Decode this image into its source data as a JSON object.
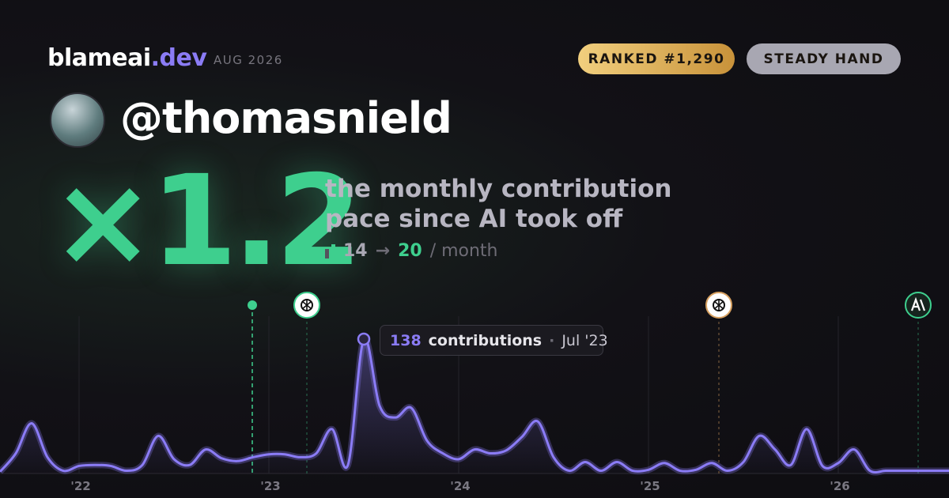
{
  "brand": {
    "name": "blameai",
    "tld": ".dev",
    "date": "AUG 2026"
  },
  "badges": [
    "RANKED #1,290",
    "STEADY HAND"
  ],
  "handle": "@thomasnield",
  "multiplier": "×1.2",
  "description": [
    "the monthly contribution",
    "pace since AI took off"
  ],
  "pace": {
    "before": "14",
    "arrow": "→",
    "after": "20",
    "unit": "/ month"
  },
  "chart": {
    "type": "line",
    "categories": [
      null,
      null,
      null,
      null,
      null,
      "'22",
      null,
      null,
      null,
      null,
      null,
      null,
      null,
      null,
      null,
      null,
      null,
      "'23",
      null,
      null,
      null,
      null,
      null,
      null,
      null,
      null,
      null,
      null,
      null,
      "'24",
      null,
      null,
      null,
      null,
      null,
      null,
      null,
      null,
      null,
      null,
      null,
      "'25",
      null,
      null,
      null,
      null,
      null,
      null,
      null,
      null,
      null,
      null,
      null,
      "'26",
      null,
      null,
      null,
      null,
      null,
      null,
      null
    ],
    "values": [
      1,
      20,
      51,
      16,
      2,
      7,
      8,
      7,
      2,
      8,
      38,
      14,
      8,
      24,
      15,
      12,
      16,
      19,
      19,
      16,
      20,
      45,
      8,
      138,
      69,
      57,
      67,
      33,
      20,
      14,
      24,
      20,
      23,
      37,
      53,
      16,
      2,
      11,
      2,
      11,
      2,
      3,
      10,
      2,
      3,
      10,
      2,
      11,
      38,
      24,
      8,
      45,
      7,
      10,
      24,
      2,
      2,
      2,
      2,
      2,
      2
    ],
    "color": "#8b7cf6",
    "tooltip": {
      "label": "contributions",
      "date": "Jul '23"
    }
  }
}
